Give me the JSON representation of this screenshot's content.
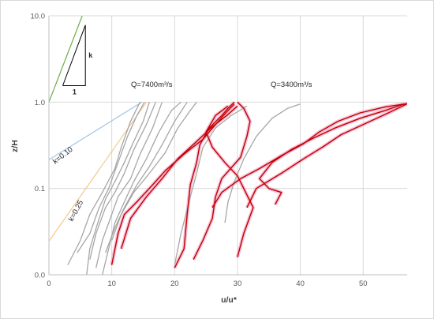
{
  "chart_data": {
    "type": "line",
    "xlabel": "u/u*",
    "ylabel": "z/H",
    "xlim": [
      0,
      57
    ],
    "xticks": [
      0,
      10,
      20,
      30,
      40,
      50
    ],
    "y_scale": "log",
    "ylim": [
      0.01,
      10
    ],
    "yticks": [
      0.01,
      0.1,
      1,
      10
    ],
    "yticklabels": [
      "0.0",
      "0.1",
      "1.0",
      "10.0"
    ],
    "grid": {
      "vertical": true,
      "horizontal": true
    },
    "annotations": {
      "q_high": "Q=7400m³/s",
      "q_low": "Q=3400m³/s",
      "k1": "k=0.10",
      "k2": "k=0.25",
      "tri_k": "k",
      "tri_one": "1"
    },
    "colors": {
      "gray_series": "#a6a6a6",
      "red_series": "#c00000",
      "red_glow": "#f4a7c6",
      "ref_green": "#70ad47",
      "ref_blue": "#9dc3e6",
      "ref_orange": "#f4c78c",
      "grid": "#d9d9d9"
    },
    "reference_lines": [
      {
        "name": "green",
        "color": "#70ad47",
        "points": [
          [
            0,
            1.0
          ],
          [
            5.3,
            10
          ]
        ]
      },
      {
        "name": "k=0.10",
        "color": "#9dc3e6",
        "points": [
          [
            0,
            0.215
          ],
          [
            14.8,
            1.0
          ]
        ]
      },
      {
        "name": "k=0.25",
        "color": "#f4c78c",
        "points": [
          [
            0,
            0.0245
          ],
          [
            15.5,
            1.0
          ]
        ]
      }
    ],
    "slope_triangle": [
      [
        2.2,
        1.55
      ],
      [
        5.8,
        1.55
      ],
      [
        5.8,
        7.8
      ]
    ],
    "series_gray": [
      {
        "points": [
          [
            3,
            0.013
          ],
          [
            5,
            0.025
          ],
          [
            6.5,
            0.05
          ],
          [
            8.5,
            0.09
          ],
          [
            10.5,
            0.17
          ],
          [
            11.5,
            0.3
          ],
          [
            13,
            0.6
          ],
          [
            14.5,
            1.0
          ]
        ]
      },
      {
        "points": [
          [
            4.5,
            0.018
          ],
          [
            6.5,
            0.03
          ],
          [
            8,
            0.06
          ],
          [
            9.5,
            0.1
          ],
          [
            11,
            0.2
          ],
          [
            12.5,
            0.4
          ],
          [
            14,
            0.7
          ],
          [
            15.2,
            1.0
          ]
        ]
      },
      {
        "points": [
          [
            6,
            0.01
          ],
          [
            6.5,
            0.02
          ],
          [
            8,
            0.045
          ],
          [
            9,
            0.075
          ],
          [
            10.5,
            0.12
          ],
          [
            12,
            0.2
          ],
          [
            13.5,
            0.35
          ],
          [
            15,
            0.6
          ],
          [
            16,
            1.0
          ]
        ]
      },
      {
        "points": [
          [
            6.5,
            0.015
          ],
          [
            7.5,
            0.03
          ],
          [
            9,
            0.06
          ],
          [
            10.5,
            0.09
          ],
          [
            12,
            0.15
          ],
          [
            13.5,
            0.28
          ],
          [
            15.5,
            0.55
          ],
          [
            17,
            1.0
          ]
        ]
      },
      {
        "points": [
          [
            7.5,
            0.012
          ],
          [
            8.5,
            0.025
          ],
          [
            10,
            0.05
          ],
          [
            11,
            0.08
          ],
          [
            13,
            0.13
          ],
          [
            14.5,
            0.25
          ],
          [
            16.5,
            0.5
          ],
          [
            18,
            1.0
          ]
        ]
      },
      {
        "points": [
          [
            8.5,
            0.01
          ],
          [
            9.5,
            0.02
          ],
          [
            10.5,
            0.04
          ],
          [
            12,
            0.07
          ],
          [
            13.5,
            0.12
          ],
          [
            15.5,
            0.22
          ],
          [
            17.5,
            0.45
          ],
          [
            19.5,
            0.8
          ],
          [
            21,
            1.0
          ]
        ]
      },
      {
        "points": [
          [
            9,
            0.018
          ],
          [
            10.5,
            0.035
          ],
          [
            12,
            0.06
          ],
          [
            14,
            0.11
          ],
          [
            16,
            0.18
          ],
          [
            18,
            0.32
          ],
          [
            20,
            0.6
          ],
          [
            22,
            1.0
          ]
        ]
      },
      {
        "points": [
          [
            10,
            0.025
          ],
          [
            11.5,
            0.05
          ],
          [
            13.5,
            0.09
          ],
          [
            16,
            0.15
          ],
          [
            18.5,
            0.26
          ],
          [
            20.5,
            0.5
          ],
          [
            22.5,
            0.8
          ],
          [
            23.5,
            1.0
          ]
        ]
      },
      {
        "points": [
          [
            20,
            0.013
          ],
          [
            21,
            0.03
          ],
          [
            22.5,
            0.08
          ],
          [
            23.5,
            0.15
          ],
          [
            24.5,
            0.3
          ],
          [
            26.5,
            0.5
          ],
          [
            29,
            0.7
          ],
          [
            31.5,
            0.9
          ]
        ]
      },
      {
        "points": [
          [
            28,
            0.04
          ],
          [
            28.5,
            0.07
          ],
          [
            29.5,
            0.12
          ],
          [
            31,
            0.22
          ],
          [
            33,
            0.4
          ],
          [
            35.5,
            0.65
          ],
          [
            38,
            0.85
          ],
          [
            40,
            0.95
          ]
        ]
      }
    ],
    "series_red": [
      {
        "points": [
          [
            10,
            0.013
          ],
          [
            11,
            0.03
          ],
          [
            12,
            0.05
          ],
          [
            14,
            0.07
          ],
          [
            16.5,
            0.11
          ],
          [
            18.5,
            0.16
          ],
          [
            21.5,
            0.25
          ],
          [
            24.5,
            0.37
          ],
          [
            26.5,
            0.55
          ],
          [
            28.5,
            0.8
          ],
          [
            29.5,
            0.95
          ]
        ]
      },
      {
        "points": [
          [
            11.5,
            0.02
          ],
          [
            13,
            0.045
          ],
          [
            15.5,
            0.08
          ],
          [
            18,
            0.13
          ],
          [
            20.5,
            0.22
          ],
          [
            23.5,
            0.35
          ],
          [
            26,
            0.52
          ],
          [
            28.5,
            0.72
          ],
          [
            30,
            0.9
          ]
        ]
      },
      {
        "points": [
          [
            20,
            0.012
          ],
          [
            21.5,
            0.02
          ],
          [
            22,
            0.05
          ],
          [
            22.5,
            0.11
          ],
          [
            23.5,
            0.2
          ],
          [
            24,
            0.32
          ],
          [
            25.5,
            0.5
          ],
          [
            27.5,
            0.7
          ],
          [
            28.5,
            0.85
          ],
          [
            29.5,
            1.0
          ]
        ]
      },
      {
        "points": [
          [
            23,
            0.015
          ],
          [
            24.5,
            0.025
          ],
          [
            26,
            0.045
          ],
          [
            26.5,
            0.08
          ],
          [
            27.5,
            0.13
          ],
          [
            30.5,
            0.23
          ],
          [
            31.5,
            0.4
          ],
          [
            32,
            0.6
          ],
          [
            31,
            0.85
          ],
          [
            30,
            1.0
          ]
        ]
      },
      {
        "points": [
          [
            30,
            0.016
          ],
          [
            31,
            0.03
          ],
          [
            32.5,
            0.06
          ],
          [
            31,
            0.1
          ],
          [
            30,
            0.14
          ],
          [
            28,
            0.2
          ],
          [
            26,
            0.3
          ],
          [
            25,
            0.45
          ],
          [
            26.5,
            0.7
          ],
          [
            28.5,
            0.9
          ]
        ]
      },
      {
        "points": [
          [
            26,
            0.06
          ],
          [
            27.5,
            0.09
          ],
          [
            30.5,
            0.13
          ],
          [
            33.5,
            0.17
          ],
          [
            37,
            0.24
          ],
          [
            40.5,
            0.33
          ],
          [
            43,
            0.45
          ],
          [
            46,
            0.6
          ],
          [
            49.5,
            0.75
          ],
          [
            53.5,
            0.88
          ],
          [
            57,
            0.96
          ]
        ]
      },
      {
        "points": [
          [
            36,
            0.065
          ],
          [
            37,
            0.09
          ],
          [
            35,
            0.1
          ],
          [
            33.5,
            0.13
          ],
          [
            35.5,
            0.2
          ],
          [
            38.5,
            0.28
          ],
          [
            42,
            0.38
          ],
          [
            45.5,
            0.5
          ],
          [
            49.5,
            0.65
          ],
          [
            53.5,
            0.8
          ],
          [
            56.5,
            0.95
          ]
        ]
      },
      {
        "points": [
          [
            31.5,
            0.06
          ],
          [
            33,
            0.1
          ],
          [
            37,
            0.15
          ],
          [
            40.5,
            0.22
          ],
          [
            43.5,
            0.3
          ],
          [
            46.5,
            0.42
          ],
          [
            50,
            0.55
          ],
          [
            53.5,
            0.72
          ],
          [
            56,
            0.88
          ],
          [
            57.5,
            1.0
          ]
        ]
      }
    ]
  }
}
